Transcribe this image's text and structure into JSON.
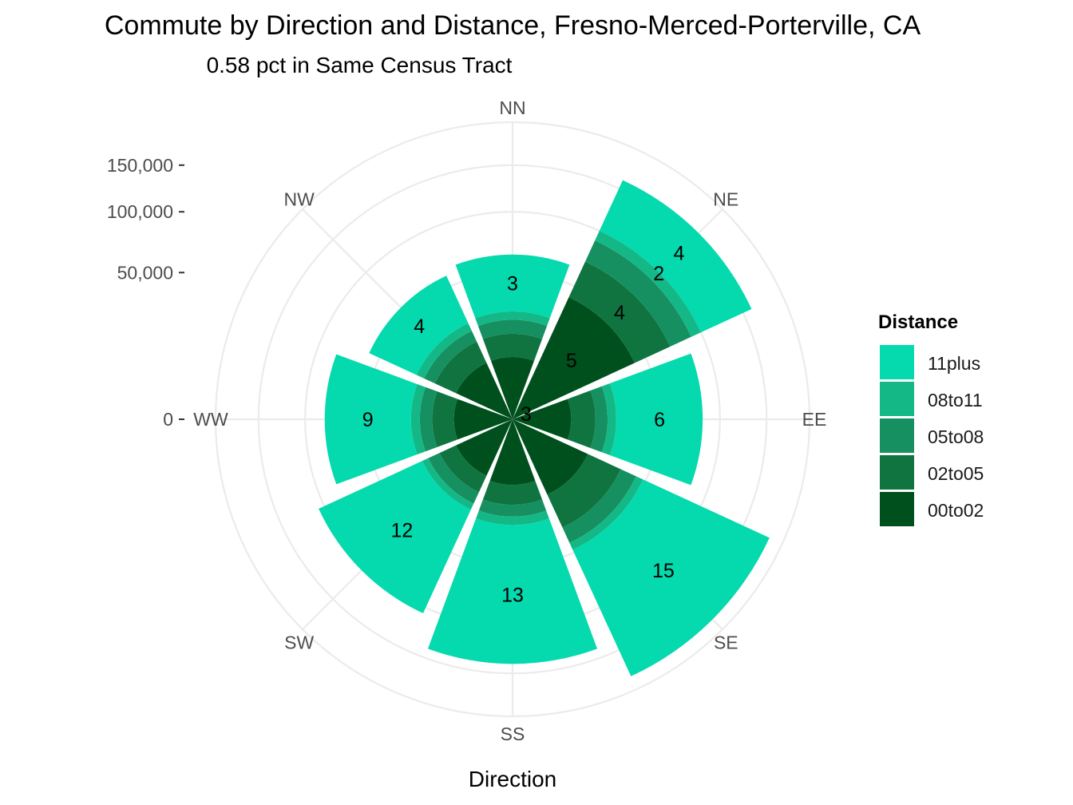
{
  "chart_data": {
    "type": "bar",
    "coord": "polar",
    "title": "Commute by Direction and Distance, Fresno-Merced-Porterville, CA",
    "subtitle": "0.58 pct in Same Census Tract",
    "xlabel": "Direction",
    "ylabel": "",
    "categories": [
      "NN",
      "NE",
      "EE",
      "SE",
      "SS",
      "SW",
      "WW",
      "NW"
    ],
    "y_ticks": [
      {
        "value": 0,
        "label": "0"
      },
      {
        "value": 50000,
        "label": "50,000"
      },
      {
        "value": 100000,
        "label": "100,000"
      },
      {
        "value": 150000,
        "label": "150,000"
      }
    ],
    "ylim": [
      0,
      205000
    ],
    "grid": true,
    "legend": {
      "title": "Distance",
      "position": "right",
      "order": [
        "11plus",
        "08to11",
        "05to08",
        "02to05",
        "00to02"
      ]
    },
    "series": [
      {
        "name": "00to02",
        "color": "#00501E",
        "values": [
          9000,
          42000,
          8000,
          16000,
          10000,
          9000,
          8000,
          9000
        ]
      },
      {
        "name": "02to05",
        "color": "#0F7440",
        "values": [
          8000,
          28000,
          8000,
          17000,
          7000,
          6000,
          7000,
          8000
        ]
      },
      {
        "name": "05to08",
        "color": "#169060",
        "values": [
          6000,
          20000,
          5000,
          10000,
          5000,
          5000,
          5000,
          5000
        ]
      },
      {
        "name": "08to11",
        "color": "#14B887",
        "values": [
          4000,
          10000,
          4000,
          5000,
          4000,
          3000,
          4000,
          4000
        ]
      },
      {
        "name": "11plus",
        "color": "#05D9AE",
        "values": [
          36000,
          61000,
          59000,
          138000,
          113000,
          83000,
          58000,
          32000
        ]
      }
    ],
    "bar_labels": [
      "3",
      "4|2|4|5",
      "6",
      "15",
      "13",
      "12",
      "9",
      "4"
    ],
    "center_label": "3"
  }
}
